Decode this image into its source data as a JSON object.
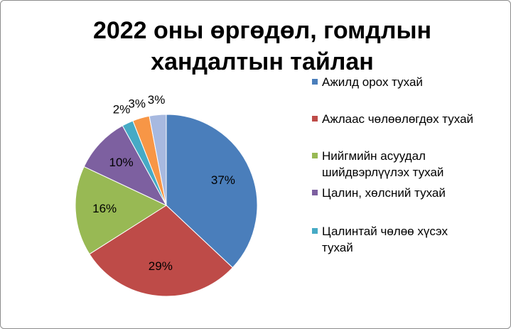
{
  "chart_data": {
    "type": "pie",
    "title": [
      "2022 оны өргөдөл, гомдлын",
      "хандалтын тайлан"
    ],
    "categories": [
      "Ажилд орох тухай",
      "Ажлаас чөлөөлөгдөх тухай",
      "Нийгмийн асуудал шийдвэрлүүлэх тухай",
      "Цалин, хөлсний тухай",
      "Цалинтай чөлөө хүсэх тухай",
      null,
      null
    ],
    "values": [
      37,
      29,
      16,
      10,
      2,
      3,
      3
    ],
    "value_labels": [
      "37%",
      "29%",
      "16%",
      "10%",
      "2%",
      "3%",
      "3%"
    ],
    "colors": [
      "#4a7ebb",
      "#be4b48",
      "#98b954",
      "#7d60a0",
      "#46aac5",
      "#f79646",
      "#a7b9e0"
    ]
  }
}
